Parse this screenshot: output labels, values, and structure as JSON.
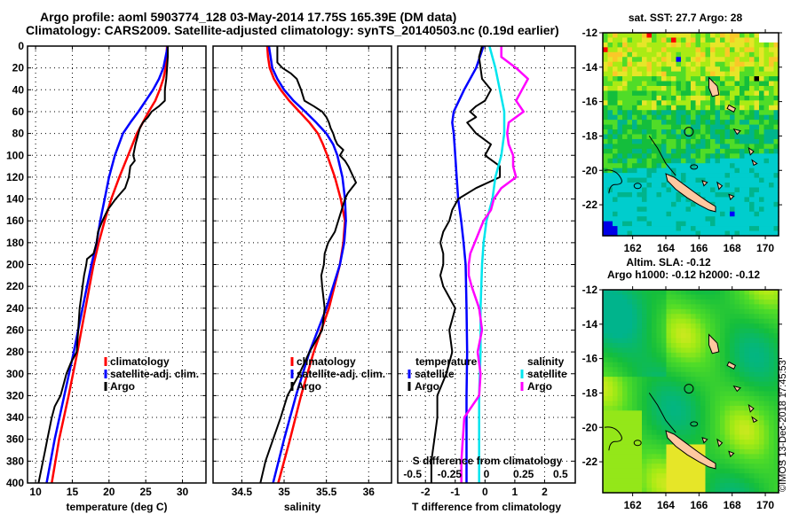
{
  "header": {
    "title_line1": "Argo profile: aoml 5903774_128 03-May-2014 17.75S 165.39E (DM data)",
    "title_line2": "Climatology: CARS2009. Satellite-adjusted climatology: synTS_20140503.nc (0.19d earlier)"
  },
  "colors": {
    "climatology": "#ff0000",
    "satellite_adj": "#0000ff",
    "argo": "#000000",
    "salinity_satellite": "#00e5ee",
    "salinity_argo": "#ff00ff",
    "land": "#ffc8a0"
  },
  "credit": "©IMOS 13-Dec-2018 17:45:53",
  "chart_data": [
    {
      "type": "line",
      "name": "temperature-profile",
      "xlabel": "temperature (deg C)",
      "ylabel": "",
      "xlim": [
        8.9,
        33.2
      ],
      "ylim": [
        400,
        0
      ],
      "xticks": [
        10,
        15,
        20,
        25,
        30
      ],
      "yticks": [
        0,
        20,
        40,
        60,
        80,
        100,
        120,
        140,
        160,
        180,
        200,
        220,
        240,
        260,
        280,
        300,
        320,
        340,
        360,
        380,
        400
      ],
      "grid": true,
      "legend": {
        "position": "center-right",
        "entries": [
          "climatology",
          "satellite-adj. clim.",
          "Argo"
        ]
      },
      "series": [
        {
          "name": "climatology",
          "color": "#ff0000",
          "depth": [
            0,
            20,
            30,
            40,
            50,
            60,
            70,
            80,
            100,
            120,
            140,
            160,
            180,
            200,
            240,
            280,
            320,
            360,
            400
          ],
          "values": [
            27.9,
            27.7,
            27.4,
            26.9,
            26.3,
            25.4,
            24.6,
            23.8,
            22.6,
            21.4,
            20.3,
            19.4,
            18.6,
            17.9,
            16.8,
            15.7,
            14.5,
            13.2,
            12.2
          ]
        },
        {
          "name": "satellite-adj. clim.",
          "color": "#0000ff",
          "depth": [
            0,
            20,
            30,
            40,
            50,
            60,
            70,
            80,
            100,
            120,
            140,
            160,
            180,
            200,
            240,
            280,
            320,
            360,
            400
          ],
          "values": [
            28.0,
            27.4,
            26.8,
            26.0,
            25.0,
            24.0,
            22.9,
            21.9,
            20.8,
            20.0,
            19.4,
            18.8,
            18.3,
            17.6,
            16.4,
            15.2,
            13.9,
            12.6,
            11.5
          ]
        },
        {
          "name": "Argo",
          "color": "#000000",
          "depth": [
            0,
            10,
            20,
            30,
            40,
            50,
            55,
            60,
            65,
            70,
            75,
            80,
            90,
            100,
            105,
            110,
            120,
            130,
            140,
            150,
            160,
            170,
            180,
            190,
            195,
            200,
            210,
            220,
            230,
            240,
            260,
            280,
            290,
            300,
            310,
            320,
            330,
            340,
            350,
            360,
            370,
            380,
            390,
            400
          ],
          "values": [
            28.0,
            28.0,
            27.9,
            27.8,
            27.6,
            27.6,
            26.8,
            25.8,
            25.3,
            24.6,
            24.2,
            24.0,
            23.6,
            23.3,
            23.5,
            22.9,
            22.7,
            22.2,
            20.9,
            19.8,
            19.1,
            18.5,
            18.3,
            17.9,
            17.0,
            16.9,
            16.6,
            16.4,
            16.2,
            16.0,
            15.8,
            15.6,
            14.8,
            14.2,
            13.8,
            13.4,
            12.6,
            12.2,
            11.9,
            11.6,
            11.3,
            11.0,
            10.7,
            10.4
          ]
        }
      ]
    },
    {
      "type": "line",
      "name": "salinity-profile",
      "xlabel": "salinity",
      "ylabel": "",
      "xlim": [
        34.16,
        36.27
      ],
      "ylim": [
        400,
        0
      ],
      "xticks": [
        34.5,
        35,
        35.5,
        36
      ],
      "grid": true,
      "legend": {
        "position": "center",
        "entries": [
          "climatology",
          "satellite-adj. clim.",
          "Argo"
        ]
      },
      "series": [
        {
          "name": "climatology",
          "color": "#ff0000",
          "depth": [
            0,
            10,
            20,
            30,
            40,
            50,
            60,
            70,
            80,
            90,
            100,
            120,
            140,
            160,
            180,
            200,
            240,
            280,
            320,
            360,
            400
          ],
          "values": [
            34.8,
            34.81,
            34.83,
            34.88,
            34.96,
            35.06,
            35.18,
            35.3,
            35.4,
            35.46,
            35.51,
            35.6,
            35.67,
            35.72,
            35.7,
            35.66,
            35.53,
            35.35,
            35.2,
            35.07,
            34.93
          ]
        },
        {
          "name": "satellite-adj. clim.",
          "color": "#0000ff",
          "depth": [
            0,
            10,
            20,
            30,
            40,
            50,
            60,
            70,
            80,
            90,
            100,
            120,
            140,
            160,
            180,
            200,
            240,
            280,
            320,
            360,
            400
          ],
          "values": [
            34.82,
            34.84,
            34.86,
            34.92,
            35.0,
            35.11,
            35.25,
            35.38,
            35.5,
            35.58,
            35.63,
            35.69,
            35.72,
            35.73,
            35.71,
            35.66,
            35.5,
            35.3,
            35.14,
            35.0,
            34.87
          ]
        },
        {
          "name": "Argo",
          "color": "#000000",
          "depth": [
            0,
            15,
            20,
            25,
            30,
            40,
            50,
            55,
            60,
            65,
            70,
            75,
            80,
            85,
            90,
            95,
            100,
            105,
            110,
            120,
            125,
            130,
            135,
            140,
            150,
            160,
            170,
            180,
            190,
            200,
            210,
            220,
            240,
            260,
            280,
            300,
            320,
            340,
            360,
            380,
            400
          ],
          "values": [
            34.92,
            34.92,
            34.98,
            35.08,
            35.15,
            35.2,
            35.24,
            35.35,
            35.45,
            35.5,
            35.53,
            35.55,
            35.58,
            35.6,
            35.63,
            35.7,
            35.66,
            35.72,
            35.76,
            35.82,
            35.85,
            35.8,
            35.75,
            35.72,
            35.68,
            35.64,
            35.6,
            35.52,
            35.48,
            35.47,
            35.44,
            35.45,
            35.48,
            35.45,
            35.3,
            35.18,
            35.04,
            34.96,
            34.87,
            34.78,
            34.72
          ]
        }
      ]
    },
    {
      "type": "line",
      "name": "difference-profile",
      "xlabel": "T difference from climatology",
      "xlabel_secondary": "S difference from climatology",
      "xlim": [
        -2.93,
        3.03
      ],
      "xlim_secondary": [
        -0.6,
        0.6
      ],
      "ylim": [
        400,
        0
      ],
      "xticks": [
        -2,
        -1,
        0,
        1,
        2
      ],
      "xticks_secondary": [
        -0.5,
        -0.25,
        0,
        0.25,
        0.5
      ],
      "grid": true,
      "legend": {
        "position": "lower-center",
        "temperature_heading": "temperature",
        "salinity_heading": "salinity",
        "entries": [
          "satellite",
          "Argo",
          "satellite",
          "Argo"
        ]
      },
      "series": [
        {
          "name": "temperature satellite",
          "color": "#0000ff",
          "axis": "T",
          "depth": [
            0,
            20,
            40,
            60,
            70,
            80,
            100,
            120,
            140,
            160,
            180,
            200,
            240,
            280,
            320,
            360,
            400
          ],
          "values": [
            -0.05,
            -0.3,
            -0.7,
            -1.05,
            -1.1,
            -1.05,
            -1.0,
            -0.95,
            -0.9,
            -0.8,
            -0.72,
            -0.65,
            -0.62,
            -0.6,
            -0.62,
            -0.62,
            -0.62
          ]
        },
        {
          "name": "temperature Argo",
          "color": "#000000",
          "axis": "T",
          "depth": [
            0,
            10,
            20,
            30,
            40,
            50,
            55,
            60,
            65,
            70,
            80,
            90,
            100,
            110,
            120,
            130,
            140,
            150,
            160,
            170,
            180,
            190,
            200,
            210,
            220,
            240,
            260,
            280,
            300,
            320,
            340,
            360,
            380,
            400
          ],
          "values": [
            -0.1,
            -0.2,
            -0.15,
            -0.1,
            0.2,
            0.0,
            -0.3,
            -0.5,
            -0.3,
            -0.6,
            -0.3,
            0.2,
            0.0,
            0.5,
            0.5,
            -0.3,
            -0.9,
            -1.1,
            -1.2,
            -1.4,
            -1.5,
            -1.4,
            -1.4,
            -1.5,
            -1.4,
            -1.0,
            -1.2,
            -1.1,
            -1.3,
            -1.6,
            -1.6,
            -1.7,
            -1.8,
            -1.8
          ]
        },
        {
          "name": "salinity satellite",
          "color": "#00e5ee",
          "axis": "S",
          "depth": [
            0,
            20,
            40,
            60,
            80,
            100,
            120,
            140,
            160,
            180,
            200,
            240,
            280,
            320,
            360,
            400
          ],
          "values": [
            0.02,
            0.06,
            0.09,
            0.12,
            0.12,
            0.1,
            0.06,
            0.04,
            0.0,
            -0.02,
            -0.03,
            -0.04,
            -0.04,
            -0.05,
            -0.05,
            -0.05
          ]
        },
        {
          "name": "salinity Argo",
          "color": "#ff00ff",
          "axis": "S",
          "depth": [
            0,
            10,
            20,
            30,
            40,
            50,
            60,
            70,
            80,
            90,
            100,
            110,
            120,
            130,
            140,
            150,
            160,
            170,
            180,
            190,
            200,
            210,
            220,
            240,
            260,
            280,
            300,
            320,
            340,
            360,
            380,
            400
          ],
          "values": [
            0.1,
            0.1,
            0.2,
            0.28,
            0.24,
            0.2,
            0.25,
            0.15,
            0.14,
            0.15,
            0.18,
            0.18,
            0.2,
            0.1,
            0.05,
            0.03,
            -0.02,
            -0.05,
            -0.08,
            -0.11,
            -0.12,
            -0.12,
            -0.1,
            -0.05,
            -0.03,
            -0.06,
            -0.04,
            -0.05,
            -0.15,
            -0.16,
            -0.17,
            -0.17
          ]
        }
      ]
    },
    {
      "type": "heatmap",
      "name": "sst-map",
      "title": "sat. SST: 27.7 Argo: 28",
      "xlim": [
        160.2,
        170.8
      ],
      "ylim": [
        -23.8,
        -12
      ],
      "xticks": [
        162,
        164,
        166,
        168,
        170
      ],
      "yticks": [
        -12,
        -14,
        -16,
        -18,
        -20,
        -22
      ],
      "argo_position": {
        "lon": 165.39,
        "lat": -17.75
      }
    },
    {
      "type": "heatmap",
      "name": "sla-map",
      "title_line1": "Altim. SLA: -0.12",
      "title_line2": "Argo h1000: -0.12 h2000: -0.12",
      "xlim": [
        160.2,
        170.8
      ],
      "ylim": [
        -23.8,
        -12
      ],
      "xticks": [
        162,
        164,
        166,
        168,
        170
      ],
      "yticks": [
        -12,
        -14,
        -16,
        -18,
        -20,
        -22
      ],
      "argo_position": {
        "lon": 165.39,
        "lat": -17.75
      }
    }
  ]
}
